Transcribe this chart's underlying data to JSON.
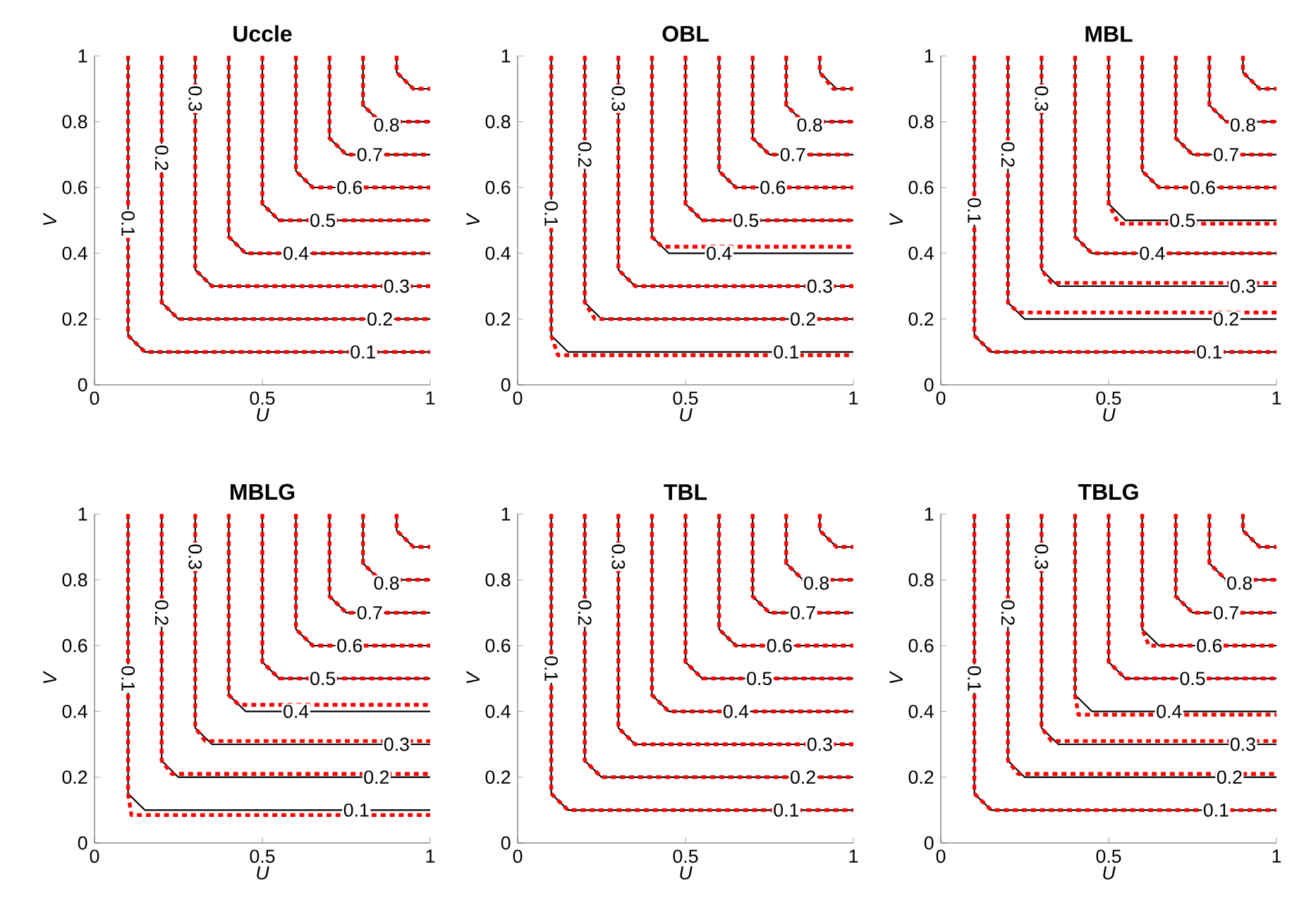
{
  "chart_data": [
    {
      "type": "line",
      "title": "Uccle",
      "xlabel": "U",
      "ylabel": "V",
      "xlim": [
        0,
        1
      ],
      "ylim": [
        0,
        1
      ],
      "xticks": [
        0,
        0.5,
        1
      ],
      "yticks": [
        0,
        0.2,
        0.4,
        0.6,
        0.8,
        1
      ],
      "series": [
        {
          "color": "#000000",
          "line_style": "solid",
          "x": [
            0.1,
            0.1,
            0.15,
            1
          ],
          "values": [
            1,
            0.15,
            0.1,
            0.1
          ]
        },
        {
          "color": "#000000",
          "line_style": "solid",
          "x": [
            0.2,
            0.2,
            0.25,
            1
          ],
          "values": [
            1,
            0.25,
            0.2,
            0.2
          ]
        },
        {
          "color": "#000000",
          "line_style": "solid",
          "x": [
            0.3,
            0.3,
            0.35,
            1
          ],
          "values": [
            1,
            0.35,
            0.3,
            0.3
          ]
        },
        {
          "color": "#000000",
          "line_style": "solid",
          "x": [
            0.4,
            0.4,
            0.45,
            1
          ],
          "values": [
            1,
            0.45,
            0.4,
            0.4
          ]
        },
        {
          "color": "#000000",
          "line_style": "solid",
          "x": [
            0.5,
            0.5,
            0.55,
            1
          ],
          "values": [
            1,
            0.55,
            0.5,
            0.5
          ]
        },
        {
          "color": "#000000",
          "line_style": "solid",
          "x": [
            0.6,
            0.6,
            0.65,
            1
          ],
          "values": [
            1,
            0.65,
            0.6,
            0.6
          ]
        },
        {
          "color": "#000000",
          "line_style": "solid",
          "x": [
            0.7,
            0.7,
            0.75,
            1
          ],
          "values": [
            1,
            0.75,
            0.7,
            0.7
          ]
        },
        {
          "color": "#000000",
          "line_style": "solid",
          "x": [
            0.8,
            0.8,
            0.85,
            1
          ],
          "values": [
            1,
            0.85,
            0.8,
            0.8
          ]
        },
        {
          "color": "#000000",
          "line_style": "solid",
          "x": [
            0.9,
            0.9,
            0.95,
            1
          ],
          "values": [
            1,
            0.95,
            0.9,
            0.9
          ]
        },
        {
          "color": "#ff0000",
          "line_style": "dashed",
          "x": [
            0.1,
            0.1,
            0.15,
            1
          ],
          "values": [
            1,
            0.15,
            0.1,
            0.1
          ]
        },
        {
          "color": "#ff0000",
          "line_style": "dashed",
          "x": [
            0.2,
            0.2,
            0.25,
            1
          ],
          "values": [
            1,
            0.25,
            0.2,
            0.2
          ]
        },
        {
          "color": "#ff0000",
          "line_style": "dashed",
          "x": [
            0.3,
            0.3,
            0.35,
            1
          ],
          "values": [
            1,
            0.35,
            0.3,
            0.3
          ]
        },
        {
          "color": "#ff0000",
          "line_style": "dashed",
          "x": [
            0.4,
            0.4,
            0.45,
            1
          ],
          "values": [
            1,
            0.45,
            0.4,
            0.4
          ]
        },
        {
          "color": "#ff0000",
          "line_style": "dashed",
          "x": [
            0.5,
            0.5,
            0.55,
            1
          ],
          "values": [
            1,
            0.55,
            0.5,
            0.5
          ]
        },
        {
          "color": "#ff0000",
          "line_style": "dashed",
          "x": [
            0.6,
            0.6,
            0.65,
            1
          ],
          "values": [
            1,
            0.65,
            0.6,
            0.6
          ]
        },
        {
          "color": "#ff0000",
          "line_style": "dashed",
          "x": [
            0.7,
            0.7,
            0.75,
            1
          ],
          "values": [
            1,
            0.75,
            0.7,
            0.7
          ]
        },
        {
          "color": "#ff0000",
          "line_style": "dashed",
          "x": [
            0.8,
            0.8,
            0.85,
            1
          ],
          "values": [
            1,
            0.85,
            0.8,
            0.8
          ]
        },
        {
          "color": "#ff0000",
          "line_style": "dashed",
          "x": [
            0.9,
            0.9,
            0.95,
            1
          ],
          "values": [
            1,
            0.95,
            0.9,
            0.9
          ]
        }
      ],
      "annotations": [
        {
          "text": "0.1",
          "x": 0.1,
          "y": 0.49
        },
        {
          "text": "0.2",
          "x": 0.2,
          "y": 0.69
        },
        {
          "text": "0.3",
          "x": 0.3,
          "y": 0.87
        },
        {
          "text": "0.1",
          "x": 0.8,
          "y": 0.1
        },
        {
          "text": "0.2",
          "x": 0.85,
          "y": 0.2
        },
        {
          "text": "0.3",
          "x": 0.9,
          "y": 0.3
        },
        {
          "text": "0.4",
          "x": 0.6,
          "y": 0.4
        },
        {
          "text": "0.5",
          "x": 0.68,
          "y": 0.5
        },
        {
          "text": "0.6",
          "x": 0.76,
          "y": 0.6
        },
        {
          "text": "0.7",
          "x": 0.82,
          "y": 0.7
        },
        {
          "text": "0.8",
          "x": 0.87,
          "y": 0.79
        }
      ]
    },
    {
      "type": "line",
      "title": "OBL",
      "xlabel": "U",
      "ylabel": "V",
      "xlim": [
        0,
        1
      ],
      "ylim": [
        0,
        1
      ],
      "xticks": [
        0,
        0.5,
        1
      ],
      "yticks": [
        0,
        0.2,
        0.4,
        0.6,
        0.8,
        1
      ],
      "series": [
        {
          "color": "#000000",
          "line_style": "solid",
          "x": [
            0.1,
            0.1,
            0.15,
            1
          ],
          "values": [
            1,
            0.15,
            0.1,
            0.1
          ]
        },
        {
          "color": "#000000",
          "line_style": "solid",
          "x": [
            0.2,
            0.2,
            0.25,
            1
          ],
          "values": [
            1,
            0.25,
            0.2,
            0.2
          ]
        },
        {
          "color": "#000000",
          "line_style": "solid",
          "x": [
            0.3,
            0.3,
            0.35,
            1
          ],
          "values": [
            1,
            0.35,
            0.3,
            0.3
          ]
        },
        {
          "color": "#000000",
          "line_style": "solid",
          "x": [
            0.4,
            0.4,
            0.45,
            1
          ],
          "values": [
            1,
            0.45,
            0.4,
            0.4
          ]
        },
        {
          "color": "#000000",
          "line_style": "solid",
          "x": [
            0.5,
            0.5,
            0.55,
            1
          ],
          "values": [
            1,
            0.55,
            0.5,
            0.5
          ]
        },
        {
          "color": "#000000",
          "line_style": "solid",
          "x": [
            0.6,
            0.6,
            0.65,
            1
          ],
          "values": [
            1,
            0.65,
            0.6,
            0.6
          ]
        },
        {
          "color": "#000000",
          "line_style": "solid",
          "x": [
            0.7,
            0.7,
            0.75,
            1
          ],
          "values": [
            1,
            0.75,
            0.7,
            0.7
          ]
        },
        {
          "color": "#000000",
          "line_style": "solid",
          "x": [
            0.8,
            0.8,
            0.85,
            1
          ],
          "values": [
            1,
            0.85,
            0.8,
            0.8
          ]
        },
        {
          "color": "#000000",
          "line_style": "solid",
          "x": [
            0.9,
            0.9,
            0.95,
            1
          ],
          "values": [
            1,
            0.95,
            0.9,
            0.9
          ]
        },
        {
          "color": "#ff0000",
          "line_style": "dashed",
          "x": [
            0.1,
            0.1,
            0.12,
            1
          ],
          "values": [
            1,
            0.15,
            0.09,
            0.09
          ]
        },
        {
          "color": "#ff0000",
          "line_style": "dashed",
          "x": [
            0.2,
            0.2,
            0.23,
            1
          ],
          "values": [
            1,
            0.25,
            0.2,
            0.2
          ]
        },
        {
          "color": "#ff0000",
          "line_style": "dashed",
          "x": [
            0.3,
            0.3,
            0.35,
            1
          ],
          "values": [
            1,
            0.35,
            0.3,
            0.3
          ]
        },
        {
          "color": "#ff0000",
          "line_style": "dashed",
          "x": [
            0.4,
            0.4,
            0.43,
            1
          ],
          "values": [
            1,
            0.45,
            0.42,
            0.42
          ]
        },
        {
          "color": "#ff0000",
          "line_style": "dashed",
          "x": [
            0.5,
            0.5,
            0.55,
            1
          ],
          "values": [
            1,
            0.55,
            0.5,
            0.5
          ]
        },
        {
          "color": "#ff0000",
          "line_style": "dashed",
          "x": [
            0.6,
            0.6,
            0.65,
            1
          ],
          "values": [
            1,
            0.65,
            0.6,
            0.6
          ]
        },
        {
          "color": "#ff0000",
          "line_style": "dashed",
          "x": [
            0.7,
            0.7,
            0.75,
            1
          ],
          "values": [
            1,
            0.75,
            0.7,
            0.7
          ]
        },
        {
          "color": "#ff0000",
          "line_style": "dashed",
          "x": [
            0.8,
            0.8,
            0.85,
            1
          ],
          "values": [
            1,
            0.85,
            0.8,
            0.8
          ]
        },
        {
          "color": "#ff0000",
          "line_style": "dashed",
          "x": [
            0.9,
            0.9,
            0.94,
            1
          ],
          "values": [
            1,
            0.95,
            0.9,
            0.9
          ]
        }
      ],
      "annotations": [
        {
          "text": "0.1",
          "x": 0.1,
          "y": 0.52
        },
        {
          "text": "0.2",
          "x": 0.2,
          "y": 0.7
        },
        {
          "text": "0.3",
          "x": 0.3,
          "y": 0.87
        },
        {
          "text": "0.1",
          "x": 0.8,
          "y": 0.1
        },
        {
          "text": "0.2",
          "x": 0.85,
          "y": 0.2
        },
        {
          "text": "0.3",
          "x": 0.9,
          "y": 0.3
        },
        {
          "text": "0.4",
          "x": 0.6,
          "y": 0.4
        },
        {
          "text": "0.5",
          "x": 0.68,
          "y": 0.5
        },
        {
          "text": "0.6",
          "x": 0.76,
          "y": 0.6
        },
        {
          "text": "0.7",
          "x": 0.82,
          "y": 0.7
        },
        {
          "text": "0.8",
          "x": 0.87,
          "y": 0.79
        }
      ]
    },
    {
      "type": "line",
      "title": "MBL",
      "xlabel": "U",
      "ylabel": "V",
      "xlim": [
        0,
        1
      ],
      "ylim": [
        0,
        1
      ],
      "xticks": [
        0,
        0.5,
        1
      ],
      "yticks": [
        0,
        0.2,
        0.4,
        0.6,
        0.8,
        1
      ],
      "series": [
        {
          "color": "#000000",
          "line_style": "solid",
          "x": [
            0.1,
            0.1,
            0.15,
            1
          ],
          "values": [
            1,
            0.15,
            0.1,
            0.1
          ]
        },
        {
          "color": "#000000",
          "line_style": "solid",
          "x": [
            0.2,
            0.2,
            0.25,
            1
          ],
          "values": [
            1,
            0.25,
            0.2,
            0.2
          ]
        },
        {
          "color": "#000000",
          "line_style": "solid",
          "x": [
            0.3,
            0.3,
            0.35,
            1
          ],
          "values": [
            1,
            0.35,
            0.3,
            0.3
          ]
        },
        {
          "color": "#000000",
          "line_style": "solid",
          "x": [
            0.4,
            0.4,
            0.45,
            1
          ],
          "values": [
            1,
            0.45,
            0.4,
            0.4
          ]
        },
        {
          "color": "#000000",
          "line_style": "solid",
          "x": [
            0.5,
            0.5,
            0.55,
            1
          ],
          "values": [
            1,
            0.55,
            0.5,
            0.5
          ]
        },
        {
          "color": "#000000",
          "line_style": "solid",
          "x": [
            0.6,
            0.6,
            0.65,
            1
          ],
          "values": [
            1,
            0.65,
            0.6,
            0.6
          ]
        },
        {
          "color": "#000000",
          "line_style": "solid",
          "x": [
            0.7,
            0.7,
            0.75,
            1
          ],
          "values": [
            1,
            0.75,
            0.7,
            0.7
          ]
        },
        {
          "color": "#000000",
          "line_style": "solid",
          "x": [
            0.8,
            0.8,
            0.85,
            1
          ],
          "values": [
            1,
            0.85,
            0.8,
            0.8
          ]
        },
        {
          "color": "#000000",
          "line_style": "solid",
          "x": [
            0.9,
            0.9,
            0.95,
            1
          ],
          "values": [
            1,
            0.95,
            0.9,
            0.9
          ]
        },
        {
          "color": "#ff0000",
          "line_style": "dashed",
          "x": [
            0.1,
            0.1,
            0.15,
            1
          ],
          "values": [
            1,
            0.15,
            0.1,
            0.1
          ]
        },
        {
          "color": "#ff0000",
          "line_style": "dashed",
          "x": [
            0.2,
            0.2,
            0.23,
            1
          ],
          "values": [
            1,
            0.25,
            0.22,
            0.22
          ]
        },
        {
          "color": "#ff0000",
          "line_style": "dashed",
          "x": [
            0.3,
            0.3,
            0.33,
            1
          ],
          "values": [
            1,
            0.35,
            0.31,
            0.31
          ]
        },
        {
          "color": "#ff0000",
          "line_style": "dashed",
          "x": [
            0.4,
            0.4,
            0.45,
            1
          ],
          "values": [
            1,
            0.45,
            0.4,
            0.4
          ]
        },
        {
          "color": "#ff0000",
          "line_style": "dashed",
          "x": [
            0.5,
            0.5,
            0.53,
            1
          ],
          "values": [
            1,
            0.55,
            0.49,
            0.49
          ]
        },
        {
          "color": "#ff0000",
          "line_style": "dashed",
          "x": [
            0.6,
            0.6,
            0.65,
            1
          ],
          "values": [
            1,
            0.65,
            0.6,
            0.6
          ]
        },
        {
          "color": "#ff0000",
          "line_style": "dashed",
          "x": [
            0.7,
            0.7,
            0.75,
            1
          ],
          "values": [
            1,
            0.75,
            0.7,
            0.7
          ]
        },
        {
          "color": "#ff0000",
          "line_style": "dashed",
          "x": [
            0.8,
            0.8,
            0.85,
            1
          ],
          "values": [
            1,
            0.85,
            0.8,
            0.8
          ]
        },
        {
          "color": "#ff0000",
          "line_style": "dashed",
          "x": [
            0.9,
            0.9,
            0.95,
            1
          ],
          "values": [
            1,
            0.95,
            0.9,
            0.9
          ]
        }
      ],
      "annotations": [
        {
          "text": "0.1",
          "x": 0.1,
          "y": 0.53
        },
        {
          "text": "0.2",
          "x": 0.2,
          "y": 0.7
        },
        {
          "text": "0.3",
          "x": 0.3,
          "y": 0.87
        },
        {
          "text": "0.1",
          "x": 0.8,
          "y": 0.1
        },
        {
          "text": "0.2",
          "x": 0.85,
          "y": 0.2
        },
        {
          "text": "0.3",
          "x": 0.9,
          "y": 0.3
        },
        {
          "text": "0.4",
          "x": 0.63,
          "y": 0.4
        },
        {
          "text": "0.5",
          "x": 0.72,
          "y": 0.5
        },
        {
          "text": "0.6",
          "x": 0.78,
          "y": 0.6
        },
        {
          "text": "0.7",
          "x": 0.85,
          "y": 0.7
        },
        {
          "text": "0.8",
          "x": 0.9,
          "y": 0.79
        }
      ]
    },
    {
      "type": "line",
      "title": "MBLG",
      "xlabel": "U",
      "ylabel": "V",
      "xlim": [
        0,
        1
      ],
      "ylim": [
        0,
        1
      ],
      "xticks": [
        0,
        0.5,
        1
      ],
      "yticks": [
        0,
        0.2,
        0.4,
        0.6,
        0.8,
        1
      ],
      "series": [
        {
          "color": "#000000",
          "line_style": "solid",
          "x": [
            0.1,
            0.1,
            0.15,
            1
          ],
          "values": [
            1,
            0.15,
            0.1,
            0.1
          ]
        },
        {
          "color": "#000000",
          "line_style": "solid",
          "x": [
            0.2,
            0.2,
            0.25,
            1
          ],
          "values": [
            1,
            0.25,
            0.2,
            0.2
          ]
        },
        {
          "color": "#000000",
          "line_style": "solid",
          "x": [
            0.3,
            0.3,
            0.35,
            1
          ],
          "values": [
            1,
            0.35,
            0.3,
            0.3
          ]
        },
        {
          "color": "#000000",
          "line_style": "solid",
          "x": [
            0.4,
            0.4,
            0.45,
            1
          ],
          "values": [
            1,
            0.45,
            0.4,
            0.4
          ]
        },
        {
          "color": "#000000",
          "line_style": "solid",
          "x": [
            0.5,
            0.5,
            0.55,
            1
          ],
          "values": [
            1,
            0.55,
            0.5,
            0.5
          ]
        },
        {
          "color": "#000000",
          "line_style": "solid",
          "x": [
            0.6,
            0.6,
            0.65,
            1
          ],
          "values": [
            1,
            0.65,
            0.6,
            0.6
          ]
        },
        {
          "color": "#000000",
          "line_style": "solid",
          "x": [
            0.7,
            0.7,
            0.75,
            1
          ],
          "values": [
            1,
            0.75,
            0.7,
            0.7
          ]
        },
        {
          "color": "#000000",
          "line_style": "solid",
          "x": [
            0.8,
            0.8,
            0.85,
            1
          ],
          "values": [
            1,
            0.85,
            0.8,
            0.8
          ]
        },
        {
          "color": "#000000",
          "line_style": "solid",
          "x": [
            0.9,
            0.9,
            0.95,
            1
          ],
          "values": [
            1,
            0.95,
            0.9,
            0.9
          ]
        },
        {
          "color": "#ff0000",
          "line_style": "dashed",
          "x": [
            0.1,
            0.1,
            0.11,
            1
          ],
          "values": [
            1,
            0.15,
            0.085,
            0.085
          ]
        },
        {
          "color": "#ff0000",
          "line_style": "dashed",
          "x": [
            0.2,
            0.2,
            0.23,
            1
          ],
          "values": [
            1,
            0.25,
            0.21,
            0.21
          ]
        },
        {
          "color": "#ff0000",
          "line_style": "dashed",
          "x": [
            0.3,
            0.3,
            0.33,
            1
          ],
          "values": [
            1,
            0.35,
            0.31,
            0.31
          ]
        },
        {
          "color": "#ff0000",
          "line_style": "dashed",
          "x": [
            0.4,
            0.4,
            0.43,
            1
          ],
          "values": [
            1,
            0.45,
            0.42,
            0.42
          ]
        },
        {
          "color": "#ff0000",
          "line_style": "dashed",
          "x": [
            0.5,
            0.5,
            0.55,
            1
          ],
          "values": [
            1,
            0.55,
            0.5,
            0.5
          ]
        },
        {
          "color": "#ff0000",
          "line_style": "dashed",
          "x": [
            0.6,
            0.6,
            0.65,
            1
          ],
          "values": [
            1,
            0.65,
            0.6,
            0.6
          ]
        },
        {
          "color": "#ff0000",
          "line_style": "dashed",
          "x": [
            0.7,
            0.7,
            0.75,
            1
          ],
          "values": [
            1,
            0.75,
            0.7,
            0.7
          ]
        },
        {
          "color": "#ff0000",
          "line_style": "dashed",
          "x": [
            0.8,
            0.8,
            0.85,
            1
          ],
          "values": [
            1,
            0.85,
            0.8,
            0.8
          ]
        },
        {
          "color": "#ff0000",
          "line_style": "dashed",
          "x": [
            0.9,
            0.9,
            0.95,
            1
          ],
          "values": [
            1,
            0.95,
            0.9,
            0.9
          ]
        }
      ],
      "annotations": [
        {
          "text": "0.1",
          "x": 0.1,
          "y": 0.5
        },
        {
          "text": "0.2",
          "x": 0.2,
          "y": 0.7
        },
        {
          "text": "0.3",
          "x": 0.3,
          "y": 0.87
        },
        {
          "text": "0.1",
          "x": 0.78,
          "y": 0.1
        },
        {
          "text": "0.2",
          "x": 0.84,
          "y": 0.2
        },
        {
          "text": "0.3",
          "x": 0.9,
          "y": 0.3
        },
        {
          "text": "0.4",
          "x": 0.6,
          "y": 0.4
        },
        {
          "text": "0.5",
          "x": 0.68,
          "y": 0.5
        },
        {
          "text": "0.6",
          "x": 0.76,
          "y": 0.6
        },
        {
          "text": "0.7",
          "x": 0.82,
          "y": 0.7
        },
        {
          "text": "0.8",
          "x": 0.87,
          "y": 0.79
        }
      ]
    },
    {
      "type": "line",
      "title": "TBL",
      "xlabel": "U",
      "ylabel": "V",
      "xlim": [
        0,
        1
      ],
      "ylim": [
        0,
        1
      ],
      "xticks": [
        0,
        0.5,
        1
      ],
      "yticks": [
        0,
        0.2,
        0.4,
        0.6,
        0.8,
        1
      ],
      "series": [
        {
          "color": "#000000",
          "line_style": "solid",
          "x": [
            0.1,
            0.1,
            0.15,
            1
          ],
          "values": [
            1,
            0.15,
            0.1,
            0.1
          ]
        },
        {
          "color": "#000000",
          "line_style": "solid",
          "x": [
            0.2,
            0.2,
            0.25,
            1
          ],
          "values": [
            1,
            0.25,
            0.2,
            0.2
          ]
        },
        {
          "color": "#000000",
          "line_style": "solid",
          "x": [
            0.3,
            0.3,
            0.35,
            1
          ],
          "values": [
            1,
            0.35,
            0.3,
            0.3
          ]
        },
        {
          "color": "#000000",
          "line_style": "solid",
          "x": [
            0.4,
            0.4,
            0.45,
            1
          ],
          "values": [
            1,
            0.45,
            0.4,
            0.4
          ]
        },
        {
          "color": "#000000",
          "line_style": "solid",
          "x": [
            0.5,
            0.5,
            0.55,
            1
          ],
          "values": [
            1,
            0.55,
            0.5,
            0.5
          ]
        },
        {
          "color": "#000000",
          "line_style": "solid",
          "x": [
            0.6,
            0.6,
            0.65,
            1
          ],
          "values": [
            1,
            0.65,
            0.6,
            0.6
          ]
        },
        {
          "color": "#000000",
          "line_style": "solid",
          "x": [
            0.7,
            0.7,
            0.75,
            1
          ],
          "values": [
            1,
            0.75,
            0.7,
            0.7
          ]
        },
        {
          "color": "#000000",
          "line_style": "solid",
          "x": [
            0.8,
            0.8,
            0.85,
            1
          ],
          "values": [
            1,
            0.85,
            0.8,
            0.8
          ]
        },
        {
          "color": "#000000",
          "line_style": "solid",
          "x": [
            0.9,
            0.9,
            0.95,
            1
          ],
          "values": [
            1,
            0.95,
            0.9,
            0.9
          ]
        },
        {
          "color": "#ff0000",
          "line_style": "dashed",
          "x": [
            0.1,
            0.1,
            0.15,
            1
          ],
          "values": [
            1,
            0.15,
            0.1,
            0.1
          ]
        },
        {
          "color": "#ff0000",
          "line_style": "dashed",
          "x": [
            0.2,
            0.2,
            0.25,
            1
          ],
          "values": [
            1,
            0.25,
            0.2,
            0.2
          ]
        },
        {
          "color": "#ff0000",
          "line_style": "dashed",
          "x": [
            0.3,
            0.3,
            0.35,
            1
          ],
          "values": [
            1,
            0.35,
            0.3,
            0.3
          ]
        },
        {
          "color": "#ff0000",
          "line_style": "dashed",
          "x": [
            0.4,
            0.4,
            0.45,
            1
          ],
          "values": [
            1,
            0.45,
            0.4,
            0.4
          ]
        },
        {
          "color": "#ff0000",
          "line_style": "dashed",
          "x": [
            0.5,
            0.5,
            0.55,
            1
          ],
          "values": [
            1,
            0.55,
            0.5,
            0.5
          ]
        },
        {
          "color": "#ff0000",
          "line_style": "dashed",
          "x": [
            0.6,
            0.6,
            0.65,
            1
          ],
          "values": [
            1,
            0.65,
            0.6,
            0.6
          ]
        },
        {
          "color": "#ff0000",
          "line_style": "dashed",
          "x": [
            0.7,
            0.7,
            0.75,
            1
          ],
          "values": [
            1,
            0.75,
            0.7,
            0.7
          ]
        },
        {
          "color": "#ff0000",
          "line_style": "dashed",
          "x": [
            0.8,
            0.8,
            0.85,
            1
          ],
          "values": [
            1,
            0.85,
            0.8,
            0.8
          ]
        },
        {
          "color": "#ff0000",
          "line_style": "dashed",
          "x": [
            0.9,
            0.9,
            0.95,
            1
          ],
          "values": [
            1,
            0.95,
            0.9,
            0.9
          ]
        }
      ],
      "annotations": [
        {
          "text": "0.1",
          "x": 0.1,
          "y": 0.53
        },
        {
          "text": "0.2",
          "x": 0.2,
          "y": 0.7
        },
        {
          "text": "0.3",
          "x": 0.3,
          "y": 0.87
        },
        {
          "text": "0.1",
          "x": 0.8,
          "y": 0.1
        },
        {
          "text": "0.2",
          "x": 0.85,
          "y": 0.2
        },
        {
          "text": "0.3",
          "x": 0.9,
          "y": 0.3
        },
        {
          "text": "0.4",
          "x": 0.65,
          "y": 0.4
        },
        {
          "text": "0.5",
          "x": 0.72,
          "y": 0.5
        },
        {
          "text": "0.6",
          "x": 0.78,
          "y": 0.6
        },
        {
          "text": "0.7",
          "x": 0.85,
          "y": 0.7
        },
        {
          "text": "0.8",
          "x": 0.89,
          "y": 0.79
        }
      ]
    },
    {
      "type": "line",
      "title": "TBLG",
      "xlabel": "U",
      "ylabel": "V",
      "xlim": [
        0,
        1
      ],
      "ylim": [
        0,
        1
      ],
      "xticks": [
        0,
        0.5,
        1
      ],
      "yticks": [
        0,
        0.2,
        0.4,
        0.6,
        0.8,
        1
      ],
      "series": [
        {
          "color": "#000000",
          "line_style": "solid",
          "x": [
            0.1,
            0.1,
            0.15,
            1
          ],
          "values": [
            1,
            0.15,
            0.1,
            0.1
          ]
        },
        {
          "color": "#000000",
          "line_style": "solid",
          "x": [
            0.2,
            0.2,
            0.25,
            1
          ],
          "values": [
            1,
            0.25,
            0.2,
            0.2
          ]
        },
        {
          "color": "#000000",
          "line_style": "solid",
          "x": [
            0.3,
            0.3,
            0.35,
            1
          ],
          "values": [
            1,
            0.35,
            0.3,
            0.3
          ]
        },
        {
          "color": "#000000",
          "line_style": "solid",
          "x": [
            0.4,
            0.4,
            0.45,
            1
          ],
          "values": [
            1,
            0.45,
            0.4,
            0.4
          ]
        },
        {
          "color": "#000000",
          "line_style": "solid",
          "x": [
            0.5,
            0.5,
            0.55,
            1
          ],
          "values": [
            1,
            0.55,
            0.5,
            0.5
          ]
        },
        {
          "color": "#000000",
          "line_style": "solid",
          "x": [
            0.6,
            0.6,
            0.65,
            1
          ],
          "values": [
            1,
            0.65,
            0.6,
            0.6
          ]
        },
        {
          "color": "#000000",
          "line_style": "solid",
          "x": [
            0.7,
            0.7,
            0.75,
            1
          ],
          "values": [
            1,
            0.75,
            0.7,
            0.7
          ]
        },
        {
          "color": "#000000",
          "line_style": "solid",
          "x": [
            0.8,
            0.8,
            0.85,
            1
          ],
          "values": [
            1,
            0.85,
            0.8,
            0.8
          ]
        },
        {
          "color": "#000000",
          "line_style": "solid",
          "x": [
            0.9,
            0.9,
            0.95,
            1
          ],
          "values": [
            1,
            0.95,
            0.9,
            0.9
          ]
        },
        {
          "color": "#ff0000",
          "line_style": "dashed",
          "x": [
            0.1,
            0.1,
            0.15,
            1
          ],
          "values": [
            1,
            0.15,
            0.1,
            0.1
          ]
        },
        {
          "color": "#ff0000",
          "line_style": "dashed",
          "x": [
            0.2,
            0.2,
            0.23,
            1
          ],
          "values": [
            1,
            0.25,
            0.21,
            0.21
          ]
        },
        {
          "color": "#ff0000",
          "line_style": "dashed",
          "x": [
            0.3,
            0.3,
            0.33,
            1
          ],
          "values": [
            1,
            0.35,
            0.31,
            0.31
          ]
        },
        {
          "color": "#ff0000",
          "line_style": "dashed",
          "x": [
            0.4,
            0.4,
            0.41,
            1
          ],
          "values": [
            1,
            0.45,
            0.39,
            0.39
          ]
        },
        {
          "color": "#ff0000",
          "line_style": "dashed",
          "x": [
            0.5,
            0.5,
            0.55,
            1
          ],
          "values": [
            1,
            0.55,
            0.5,
            0.5
          ]
        },
        {
          "color": "#ff0000",
          "line_style": "dashed",
          "x": [
            0.6,
            0.6,
            0.62,
            1
          ],
          "values": [
            1,
            0.65,
            0.6,
            0.6
          ]
        },
        {
          "color": "#ff0000",
          "line_style": "dashed",
          "x": [
            0.7,
            0.7,
            0.75,
            1
          ],
          "values": [
            1,
            0.75,
            0.7,
            0.7
          ]
        },
        {
          "color": "#ff0000",
          "line_style": "dashed",
          "x": [
            0.8,
            0.8,
            0.85,
            1
          ],
          "values": [
            1,
            0.85,
            0.8,
            0.8
          ]
        },
        {
          "color": "#ff0000",
          "line_style": "dashed",
          "x": [
            0.9,
            0.9,
            0.95,
            1
          ],
          "values": [
            1,
            0.95,
            0.9,
            0.9
          ]
        }
      ],
      "annotations": [
        {
          "text": "0.1",
          "x": 0.1,
          "y": 0.5
        },
        {
          "text": "0.2",
          "x": 0.2,
          "y": 0.7
        },
        {
          "text": "0.3",
          "x": 0.3,
          "y": 0.87
        },
        {
          "text": "0.1",
          "x": 0.82,
          "y": 0.1
        },
        {
          "text": "0.2",
          "x": 0.86,
          "y": 0.2
        },
        {
          "text": "0.3",
          "x": 0.9,
          "y": 0.3
        },
        {
          "text": "0.4",
          "x": 0.68,
          "y": 0.4
        },
        {
          "text": "0.5",
          "x": 0.75,
          "y": 0.5
        },
        {
          "text": "0.6",
          "x": 0.8,
          "y": 0.6
        },
        {
          "text": "0.7",
          "x": 0.85,
          "y": 0.7
        },
        {
          "text": "0.8",
          "x": 0.89,
          "y": 0.79
        }
      ]
    }
  ]
}
